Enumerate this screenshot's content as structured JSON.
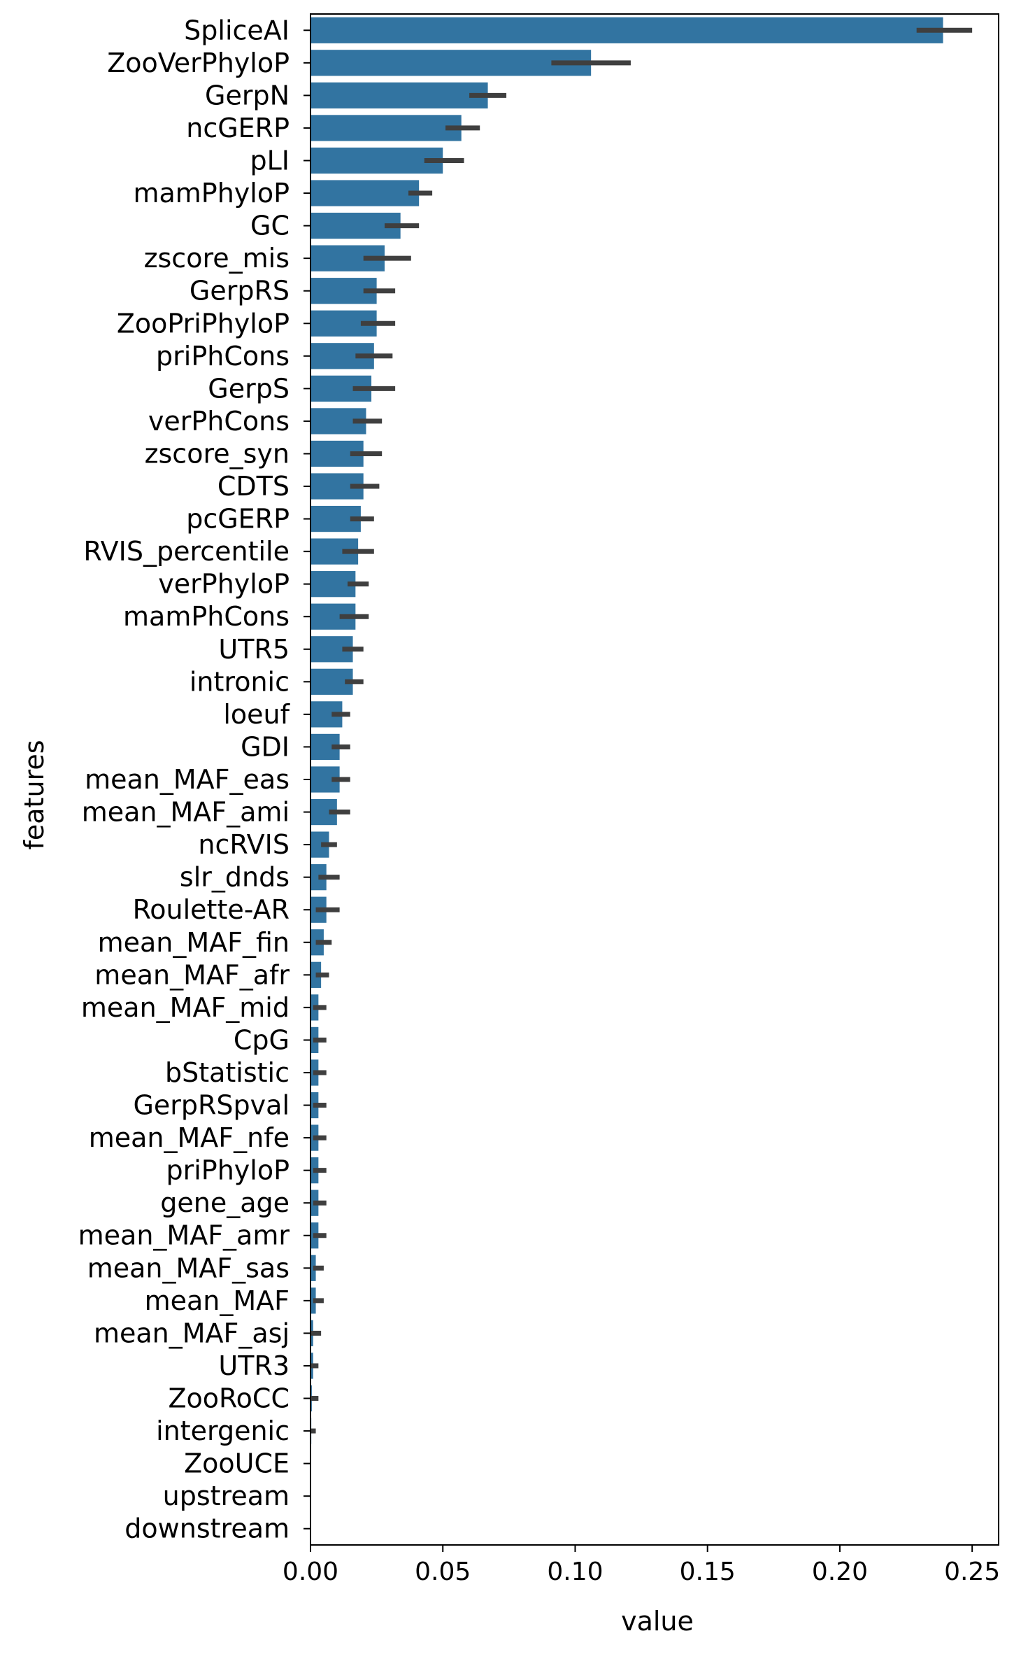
{
  "chart_data": {
    "type": "bar",
    "orientation": "horizontal",
    "xlabel": "value",
    "ylabel": "features",
    "xlim": [
      0,
      0.26
    ],
    "xticks": [
      0.0,
      0.05,
      0.1,
      0.15,
      0.2,
      0.25
    ],
    "xtick_labels": [
      "0.00",
      "0.05",
      "0.10",
      "0.15",
      "0.20",
      "0.25"
    ],
    "bar_color": "#3274a1",
    "errorbar_color": "#3f3f3f",
    "grid": false,
    "categories": [
      "SpliceAI",
      "ZooVerPhyloP",
      "GerpN",
      "ncGERP",
      "pLI",
      "mamPhyloP",
      "GC",
      "zscore_mis",
      "GerpRS",
      "ZooPriPhyloP",
      "priPhCons",
      "GerpS",
      "verPhCons",
      "zscore_syn",
      "CDTS",
      "pcGERP",
      "RVIS_percentile",
      "verPhyloP",
      "mamPhCons",
      "UTR5",
      "intronic",
      "loeuf",
      "GDI",
      "mean_MAF_eas",
      "mean_MAF_ami",
      "ncRVIS",
      "slr_dnds",
      "Roulette-AR",
      "mean_MAF_fin",
      "mean_MAF_afr",
      "mean_MAF_mid",
      "CpG",
      "bStatistic",
      "GerpRSpval",
      "mean_MAF_nfe",
      "priPhyloP",
      "gene_age",
      "mean_MAF_amr",
      "mean_MAF_sas",
      "mean_MAF",
      "mean_MAF_asj",
      "UTR3",
      "ZooRoCC",
      "intergenic",
      "ZooUCE",
      "upstream",
      "downstream"
    ],
    "values": [
      0.239,
      0.106,
      0.067,
      0.057,
      0.05,
      0.041,
      0.034,
      0.028,
      0.025,
      0.025,
      0.024,
      0.023,
      0.021,
      0.02,
      0.02,
      0.019,
      0.018,
      0.017,
      0.017,
      0.016,
      0.016,
      0.012,
      0.011,
      0.011,
      0.01,
      0.007,
      0.006,
      0.006,
      0.005,
      0.004,
      0.003,
      0.003,
      0.003,
      0.003,
      0.003,
      0.003,
      0.003,
      0.003,
      0.002,
      0.002,
      0.001,
      0.001,
      0.0005,
      0.0003,
      0.0,
      0.0,
      0.0
    ],
    "error_low": [
      0.229,
      0.091,
      0.06,
      0.051,
      0.043,
      0.037,
      0.028,
      0.02,
      0.02,
      0.019,
      0.017,
      0.016,
      0.016,
      0.015,
      0.015,
      0.015,
      0.012,
      0.014,
      0.011,
      0.012,
      0.013,
      0.008,
      0.008,
      0.008,
      0.007,
      0.004,
      0.003,
      0.002,
      0.002,
      0.002,
      0.001,
      0.001,
      0.001,
      0.001,
      0.001,
      0.001,
      0.001,
      0.001,
      0.001,
      0.001,
      0.0,
      0.0,
      0.0,
      0.0,
      0.0,
      0.0,
      0.0
    ],
    "error_high": [
      0.25,
      0.121,
      0.074,
      0.064,
      0.058,
      0.046,
      0.041,
      0.038,
      0.032,
      0.032,
      0.031,
      0.032,
      0.027,
      0.027,
      0.026,
      0.024,
      0.024,
      0.022,
      0.022,
      0.02,
      0.02,
      0.015,
      0.015,
      0.015,
      0.015,
      0.01,
      0.011,
      0.011,
      0.008,
      0.007,
      0.006,
      0.006,
      0.006,
      0.006,
      0.006,
      0.006,
      0.006,
      0.006,
      0.005,
      0.005,
      0.004,
      0.003,
      0.003,
      0.002,
      0.0,
      0.0,
      0.0
    ]
  }
}
